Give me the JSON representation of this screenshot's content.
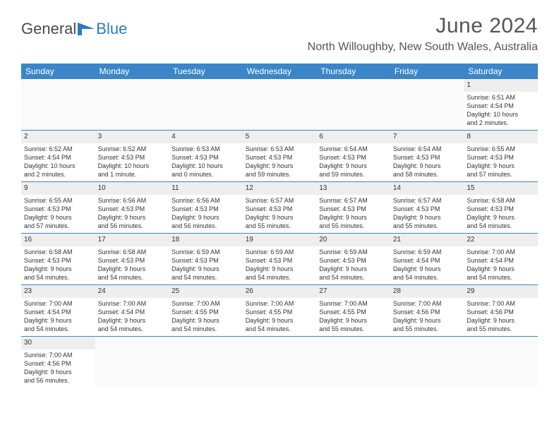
{
  "logo": {
    "word1": "General",
    "word2": "Blue"
  },
  "title": "June 2024",
  "location": "North Willoughby, New South Wales, Australia",
  "weekdays": [
    "Sunday",
    "Monday",
    "Tuesday",
    "Wednesday",
    "Thursday",
    "Friday",
    "Saturday"
  ],
  "colors": {
    "header_bg": "#3a86c8",
    "header_text": "#ffffff",
    "daynum_bg": "#eeeeee",
    "border": "#3a86c8"
  },
  "rows": [
    [
      null,
      null,
      null,
      null,
      null,
      null,
      {
        "n": "1",
        "sr": "Sunrise: 6:51 AM",
        "ss": "Sunset: 4:54 PM",
        "dl1": "Daylight: 10 hours",
        "dl2": "and 2 minutes."
      }
    ],
    [
      {
        "n": "2",
        "sr": "Sunrise: 6:52 AM",
        "ss": "Sunset: 4:54 PM",
        "dl1": "Daylight: 10 hours",
        "dl2": "and 2 minutes."
      },
      {
        "n": "3",
        "sr": "Sunrise: 6:52 AM",
        "ss": "Sunset: 4:53 PM",
        "dl1": "Daylight: 10 hours",
        "dl2": "and 1 minute."
      },
      {
        "n": "4",
        "sr": "Sunrise: 6:53 AM",
        "ss": "Sunset: 4:53 PM",
        "dl1": "Daylight: 10 hours",
        "dl2": "and 0 minutes."
      },
      {
        "n": "5",
        "sr": "Sunrise: 6:53 AM",
        "ss": "Sunset: 4:53 PM",
        "dl1": "Daylight: 9 hours",
        "dl2": "and 59 minutes."
      },
      {
        "n": "6",
        "sr": "Sunrise: 6:54 AM",
        "ss": "Sunset: 4:53 PM",
        "dl1": "Daylight: 9 hours",
        "dl2": "and 59 minutes."
      },
      {
        "n": "7",
        "sr": "Sunrise: 6:54 AM",
        "ss": "Sunset: 4:53 PM",
        "dl1": "Daylight: 9 hours",
        "dl2": "and 58 minutes."
      },
      {
        "n": "8",
        "sr": "Sunrise: 6:55 AM",
        "ss": "Sunset: 4:53 PM",
        "dl1": "Daylight: 9 hours",
        "dl2": "and 57 minutes."
      }
    ],
    [
      {
        "n": "9",
        "sr": "Sunrise: 6:55 AM",
        "ss": "Sunset: 4:53 PM",
        "dl1": "Daylight: 9 hours",
        "dl2": "and 57 minutes."
      },
      {
        "n": "10",
        "sr": "Sunrise: 6:56 AM",
        "ss": "Sunset: 4:53 PM",
        "dl1": "Daylight: 9 hours",
        "dl2": "and 56 minutes."
      },
      {
        "n": "11",
        "sr": "Sunrise: 6:56 AM",
        "ss": "Sunset: 4:53 PM",
        "dl1": "Daylight: 9 hours",
        "dl2": "and 56 minutes."
      },
      {
        "n": "12",
        "sr": "Sunrise: 6:57 AM",
        "ss": "Sunset: 4:53 PM",
        "dl1": "Daylight: 9 hours",
        "dl2": "and 55 minutes."
      },
      {
        "n": "13",
        "sr": "Sunrise: 6:57 AM",
        "ss": "Sunset: 4:53 PM",
        "dl1": "Daylight: 9 hours",
        "dl2": "and 55 minutes."
      },
      {
        "n": "14",
        "sr": "Sunrise: 6:57 AM",
        "ss": "Sunset: 4:53 PM",
        "dl1": "Daylight: 9 hours",
        "dl2": "and 55 minutes."
      },
      {
        "n": "15",
        "sr": "Sunrise: 6:58 AM",
        "ss": "Sunset: 4:53 PM",
        "dl1": "Daylight: 9 hours",
        "dl2": "and 54 minutes."
      }
    ],
    [
      {
        "n": "16",
        "sr": "Sunrise: 6:58 AM",
        "ss": "Sunset: 4:53 PM",
        "dl1": "Daylight: 9 hours",
        "dl2": "and 54 minutes."
      },
      {
        "n": "17",
        "sr": "Sunrise: 6:58 AM",
        "ss": "Sunset: 4:53 PM",
        "dl1": "Daylight: 9 hours",
        "dl2": "and 54 minutes."
      },
      {
        "n": "18",
        "sr": "Sunrise: 6:59 AM",
        "ss": "Sunset: 4:53 PM",
        "dl1": "Daylight: 9 hours",
        "dl2": "and 54 minutes."
      },
      {
        "n": "19",
        "sr": "Sunrise: 6:59 AM",
        "ss": "Sunset: 4:53 PM",
        "dl1": "Daylight: 9 hours",
        "dl2": "and 54 minutes."
      },
      {
        "n": "20",
        "sr": "Sunrise: 6:59 AM",
        "ss": "Sunset: 4:53 PM",
        "dl1": "Daylight: 9 hours",
        "dl2": "and 54 minutes."
      },
      {
        "n": "21",
        "sr": "Sunrise: 6:59 AM",
        "ss": "Sunset: 4:54 PM",
        "dl1": "Daylight: 9 hours",
        "dl2": "and 54 minutes."
      },
      {
        "n": "22",
        "sr": "Sunrise: 7:00 AM",
        "ss": "Sunset: 4:54 PM",
        "dl1": "Daylight: 9 hours",
        "dl2": "and 54 minutes."
      }
    ],
    [
      {
        "n": "23",
        "sr": "Sunrise: 7:00 AM",
        "ss": "Sunset: 4:54 PM",
        "dl1": "Daylight: 9 hours",
        "dl2": "and 54 minutes."
      },
      {
        "n": "24",
        "sr": "Sunrise: 7:00 AM",
        "ss": "Sunset: 4:54 PM",
        "dl1": "Daylight: 9 hours",
        "dl2": "and 54 minutes."
      },
      {
        "n": "25",
        "sr": "Sunrise: 7:00 AM",
        "ss": "Sunset: 4:55 PM",
        "dl1": "Daylight: 9 hours",
        "dl2": "and 54 minutes."
      },
      {
        "n": "26",
        "sr": "Sunrise: 7:00 AM",
        "ss": "Sunset: 4:55 PM",
        "dl1": "Daylight: 9 hours",
        "dl2": "and 54 minutes."
      },
      {
        "n": "27",
        "sr": "Sunrise: 7:00 AM",
        "ss": "Sunset: 4:55 PM",
        "dl1": "Daylight: 9 hours",
        "dl2": "and 55 minutes."
      },
      {
        "n": "28",
        "sr": "Sunrise: 7:00 AM",
        "ss": "Sunset: 4:56 PM",
        "dl1": "Daylight: 9 hours",
        "dl2": "and 55 minutes."
      },
      {
        "n": "29",
        "sr": "Sunrise: 7:00 AM",
        "ss": "Sunset: 4:56 PM",
        "dl1": "Daylight: 9 hours",
        "dl2": "and 55 minutes."
      }
    ],
    [
      {
        "n": "30",
        "sr": "Sunrise: 7:00 AM",
        "ss": "Sunset: 4:56 PM",
        "dl1": "Daylight: 9 hours",
        "dl2": "and 56 minutes."
      },
      null,
      null,
      null,
      null,
      null,
      null
    ]
  ]
}
